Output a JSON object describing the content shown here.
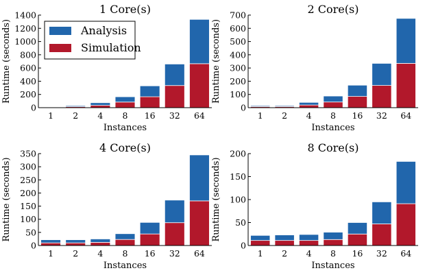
{
  "colors": {
    "analysis": "#2166ac",
    "simulation": "#b2182b"
  },
  "legend": {
    "placement": "upper-left-of-first-panel",
    "entries": [
      {
        "name": "Analysis",
        "color": "#2166ac"
      },
      {
        "name": "Simulation",
        "color": "#b2182b"
      }
    ]
  },
  "chart_data": [
    {
      "type": "bar",
      "stacked": true,
      "title": "1 Core(s)",
      "xlabel": "Instances",
      "ylabel": "Runtime (seconds)",
      "categories": [
        "1",
        "2",
        "4",
        "8",
        "16",
        "32",
        "64"
      ],
      "ylim": [
        0,
        1400
      ],
      "yticks": [
        0,
        200,
        400,
        600,
        800,
        1000,
        1200,
        1400
      ],
      "series": [
        {
          "name": "Simulation",
          "values": [
            5,
            15,
            35,
            85,
            165,
            335,
            665
          ]
        },
        {
          "name": "Analysis",
          "values": [
            5,
            15,
            40,
            80,
            165,
            325,
            670
          ]
        }
      ]
    },
    {
      "type": "bar",
      "stacked": true,
      "title": "2 Core(s)",
      "xlabel": "Instances",
      "ylabel": "Runtime (seconds)",
      "categories": [
        "1",
        "2",
        "4",
        "8",
        "16",
        "32",
        "64"
      ],
      "ylim": [
        0,
        700
      ],
      "yticks": [
        0,
        100,
        200,
        300,
        400,
        500,
        600,
        700
      ],
      "series": [
        {
          "name": "Simulation",
          "values": [
            8,
            8,
            20,
            43,
            85,
            168,
            335
          ]
        },
        {
          "name": "Analysis",
          "values": [
            7,
            7,
            20,
            45,
            85,
            167,
            340
          ]
        }
      ]
    },
    {
      "type": "bar",
      "stacked": true,
      "title": "4 Core(s)",
      "xlabel": "Instances",
      "ylabel": "Runtime (seconds)",
      "categories": [
        "1",
        "2",
        "4",
        "8",
        "16",
        "32",
        "64"
      ],
      "ylim": [
        0,
        350
      ],
      "yticks": [
        0,
        50,
        100,
        150,
        200,
        250,
        300,
        350
      ],
      "series": [
        {
          "name": "Simulation",
          "values": [
            10,
            10,
            12,
            23,
            44,
            87,
            170
          ]
        },
        {
          "name": "Analysis",
          "values": [
            12,
            12,
            13,
            22,
            44,
            86,
            175
          ]
        }
      ]
    },
    {
      "type": "bar",
      "stacked": true,
      "title": "8 Core(s)",
      "xlabel": "Instances",
      "ylabel": "Runtime (seconds)",
      "categories": [
        "1",
        "2",
        "4",
        "8",
        "16",
        "32",
        "64"
      ],
      "ylim": [
        0,
        200
      ],
      "yticks": [
        0,
        50,
        100,
        150,
        200
      ],
      "series": [
        {
          "name": "Simulation",
          "values": [
            11,
            11,
            11,
            13,
            25,
            47,
            91
          ]
        },
        {
          "name": "Analysis",
          "values": [
            11,
            12,
            13,
            16,
            25,
            48,
            92
          ]
        }
      ]
    }
  ]
}
